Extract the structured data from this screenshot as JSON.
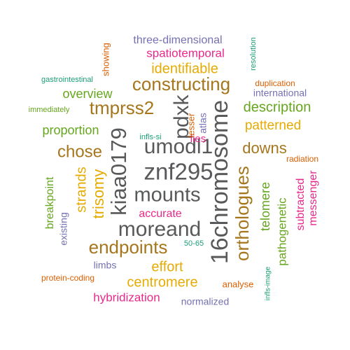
{
  "palette": {
    "dark_gray": "#58595b",
    "brown": "#a6761d",
    "gold": "#e6ab02",
    "green": "#66a61e",
    "magenta": "#e7298a",
    "purple": "#7570b3",
    "orange": "#d95f02",
    "teal": "#1b9e77"
  },
  "words": [
    {
      "text": "16chromosome",
      "color": "dark_gray"
    },
    {
      "text": "znf295",
      "color": "dark_gray"
    },
    {
      "text": "umodl1",
      "color": "dark_gray"
    },
    {
      "text": "mounts",
      "color": "dark_gray"
    },
    {
      "text": "moreand",
      "color": "dark_gray"
    },
    {
      "text": "kiaa0179",
      "color": "dark_gray"
    },
    {
      "text": "pdxk",
      "color": "dark_gray"
    },
    {
      "text": "orthologues",
      "color": "brown"
    },
    {
      "text": "constructing",
      "color": "brown"
    },
    {
      "text": "tmprss2",
      "color": "brown"
    },
    {
      "text": "endpoints",
      "color": "brown"
    },
    {
      "text": "chose",
      "color": "brown"
    },
    {
      "text": "downs",
      "color": "brown"
    },
    {
      "text": "trisomy",
      "color": "gold"
    },
    {
      "text": "strands",
      "color": "gold"
    },
    {
      "text": "identifiable",
      "color": "gold"
    },
    {
      "text": "patterned",
      "color": "gold"
    },
    {
      "text": "effort",
      "color": "gold"
    },
    {
      "text": "centromere",
      "color": "gold"
    },
    {
      "text": "description",
      "color": "green"
    },
    {
      "text": "overview",
      "color": "green"
    },
    {
      "text": "proportion",
      "color": "green"
    },
    {
      "text": "telomere",
      "color": "green"
    },
    {
      "text": "pathogenetic",
      "color": "green"
    },
    {
      "text": "breakpoint",
      "color": "green"
    },
    {
      "text": "immediately",
      "color": "green"
    },
    {
      "text": "spatiotemporal",
      "color": "magenta"
    },
    {
      "text": "hybridization",
      "color": "magenta"
    },
    {
      "text": "subtracted",
      "color": "magenta"
    },
    {
      "text": "messenger",
      "color": "magenta"
    },
    {
      "text": "accurate",
      "color": "magenta"
    },
    {
      "text": "lies",
      "color": "magenta"
    },
    {
      "text": "three-dimensional",
      "color": "purple"
    },
    {
      "text": "international",
      "color": "purple"
    },
    {
      "text": "atlas",
      "color": "purple"
    },
    {
      "text": "existing",
      "color": "purple"
    },
    {
      "text": "limbs",
      "color": "purple"
    },
    {
      "text": "normalized",
      "color": "purple"
    },
    {
      "text": "showing",
      "color": "orange"
    },
    {
      "text": "duplication",
      "color": "orange"
    },
    {
      "text": "lesser",
      "color": "orange"
    },
    {
      "text": "radiation",
      "color": "orange"
    },
    {
      "text": "protein-coding",
      "color": "orange"
    },
    {
      "text": "analyse",
      "color": "orange"
    },
    {
      "text": "resolution",
      "color": "teal"
    },
    {
      "text": "gastrointestinal",
      "color": "teal"
    },
    {
      "text": "infls-si",
      "color": "teal"
    },
    {
      "text": "50-65",
      "color": "teal"
    },
    {
      "text": "infls-image",
      "color": "teal"
    }
  ]
}
